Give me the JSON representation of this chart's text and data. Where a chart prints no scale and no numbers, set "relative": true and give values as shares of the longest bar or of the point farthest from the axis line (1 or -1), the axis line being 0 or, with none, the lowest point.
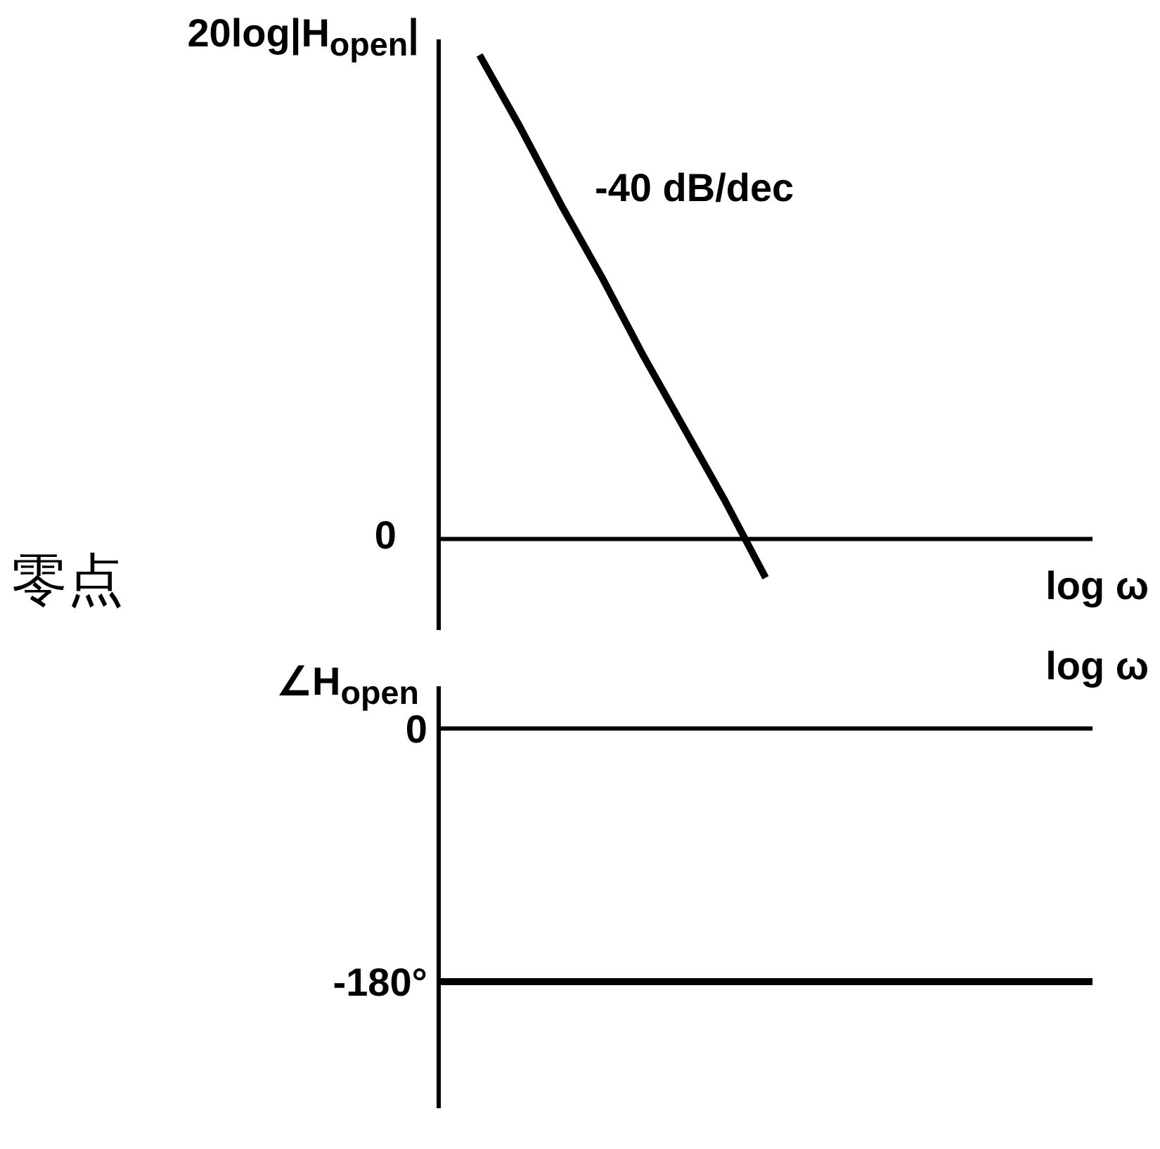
{
  "chart_data": [
    {
      "type": "line",
      "relative": true,
      "ylabel": "20log|H$_{open}$|",
      "xlabel": "log ω",
      "categories": [
        null,
        null,
        null,
        null,
        null,
        null,
        null,
        null,
        null,
        null,
        null,
        null,
        null,
        null,
        null,
        null,
        null
      ],
      "series": [
        {
          "color": "#000000",
          "values": [
            null,
            1,
            0.85,
            0.69,
            0.54,
            0.38,
            0.23,
            0.08,
            -0.08,
            null,
            null,
            null,
            null,
            null,
            null,
            null,
            null
          ]
        }
      ],
      "annotations": [
        "0",
        "-40 dB/dec",
        "零点"
      ]
    },
    {
      "type": "line",
      "ylabel": "∠H$_{open}$",
      "xlabel": "log ω",
      "ylim": [
        -270,
        30
      ],
      "yticks": [
        0,
        {
          "value": -180,
          "label": "-180°"
        }
      ],
      "categories": [
        null,
        null,
        null,
        null,
        null,
        null,
        null,
        null,
        null,
        null,
        null,
        null,
        null,
        null,
        null,
        null,
        null
      ],
      "series": [
        {
          "color": "#000000",
          "values": [
            -180,
            -180,
            -180,
            -180,
            -180,
            -180,
            -180,
            -180,
            -180,
            -180,
            -180,
            -180,
            -180,
            -180,
            -180,
            -180,
            -180
          ]
        }
      ]
    }
  ]
}
